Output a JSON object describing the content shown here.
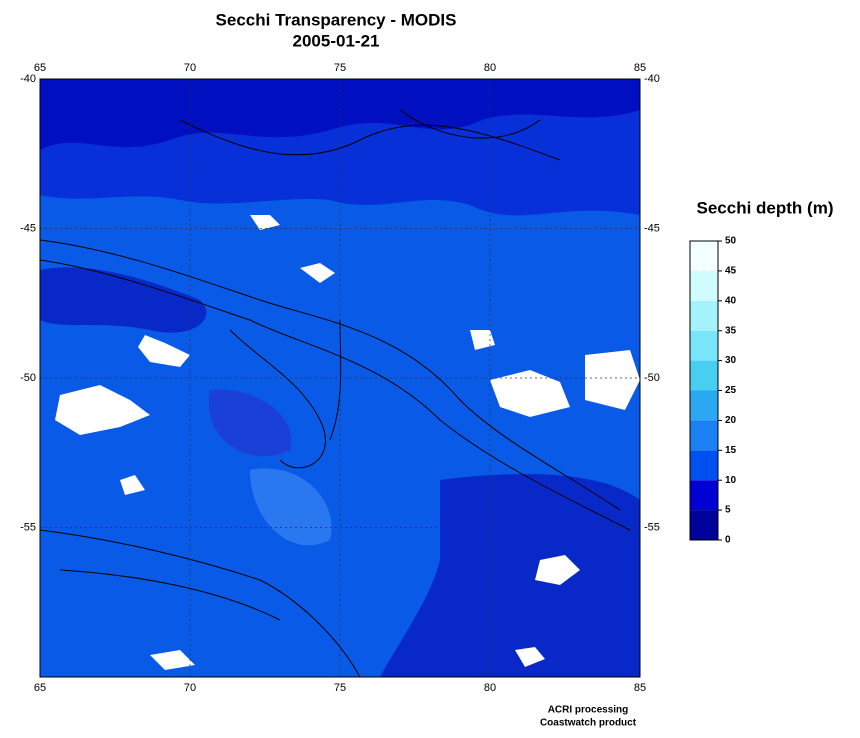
{
  "title": "Secchi Transparency - MODIS",
  "subtitle": "2005-01-21",
  "map": {
    "lon_lim": [
      65,
      85
    ],
    "lat_lim": [
      -40,
      -60
    ],
    "lon_ticks": [
      65,
      70,
      75,
      80,
      85
    ],
    "lat_ticks": [
      -40,
      -45,
      -50,
      -55
    ]
  },
  "colorbar": {
    "title": "Secchi depth (m)",
    "ticks": [
      0,
      5,
      10,
      15,
      20,
      25,
      30,
      35,
      40,
      45,
      50
    ],
    "colors": [
      "#00009a",
      "#0000d2",
      "#0050f0",
      "#1a80f4",
      "#2aa8f0",
      "#48cef0",
      "#78e6f8",
      "#a4f2fc",
      "#d0fbff",
      "#f4ffff"
    ]
  },
  "footer": [
    "ACRI processing",
    "Coastwatch product"
  ]
}
